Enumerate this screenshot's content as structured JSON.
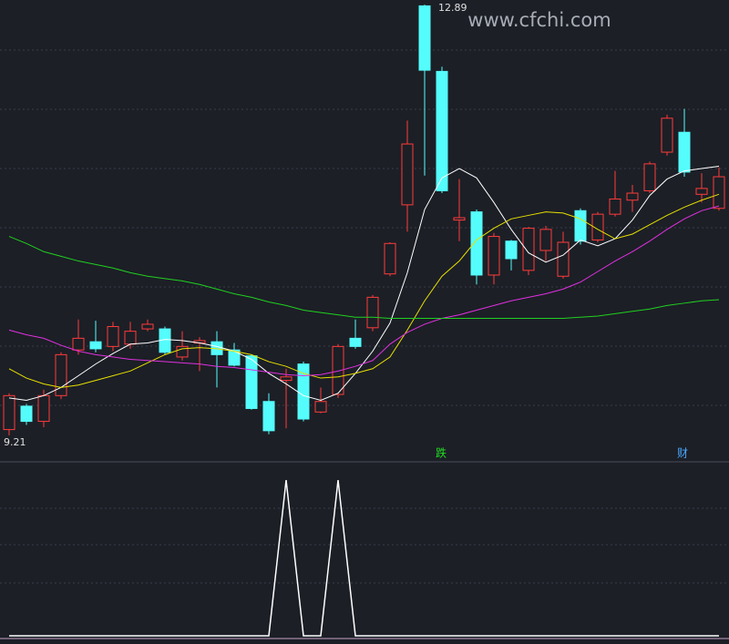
{
  "chart_data": [
    {
      "type": "candlestick",
      "watermark": "www.cfchi.com",
      "annotations": [
        "12.89",
        "9.21",
        "跌",
        "财"
      ],
      "up_color": "#ff3b3b",
      "down_color": "#54fcfc",
      "ylim": [
        9.0,
        12.93
      ],
      "open": [
        9.26,
        9.46,
        9.33,
        9.55,
        9.94,
        10.01,
        9.97,
        9.99,
        10.12,
        10.12,
        9.88,
        10.0,
        10.01,
        9.94,
        9.89,
        9.5,
        9.68,
        9.82,
        9.41,
        9.56,
        10.04,
        10.13,
        10.59,
        11.18,
        12.88,
        12.32,
        11.05,
        11.12,
        10.58,
        10.87,
        10.62,
        10.79,
        10.57,
        11.13,
        10.88,
        11.1,
        11.22,
        11.3,
        11.63,
        11.8,
        11.27,
        11.15
      ],
      "high": [
        9.57,
        9.48,
        9.6,
        9.92,
        10.2,
        10.19,
        10.18,
        10.18,
        10.2,
        10.14,
        10.1,
        10.05,
        10.1,
        10.0,
        9.9,
        9.57,
        9.78,
        9.84,
        9.62,
        9.99,
        10.2,
        10.41,
        10.86,
        11.9,
        12.89,
        12.36,
        11.4,
        11.14,
        10.94,
        10.88,
        10.99,
        11.0,
        10.95,
        11.15,
        11.12,
        11.47,
        11.35,
        11.55,
        11.95,
        12.0,
        11.45,
        11.5
      ],
      "low": [
        9.21,
        9.3,
        9.28,
        9.52,
        9.9,
        9.92,
        9.93,
        9.95,
        10.1,
        9.9,
        9.85,
        9.76,
        9.62,
        9.8,
        9.43,
        9.22,
        9.27,
        9.33,
        9.4,
        9.53,
        9.95,
        10.1,
        10.57,
        10.95,
        11.43,
        11.28,
        10.87,
        10.5,
        10.5,
        10.62,
        10.58,
        10.7,
        10.55,
        10.84,
        10.86,
        11.08,
        11.12,
        11.28,
        11.6,
        11.42,
        11.2,
        11.13
      ],
      "close": [
        9.55,
        9.33,
        9.55,
        9.9,
        10.04,
        9.95,
        10.14,
        10.1,
        10.16,
        9.92,
        9.97,
        10.02,
        9.9,
        9.81,
        9.44,
        9.25,
        9.71,
        9.35,
        9.5,
        9.97,
        9.97,
        10.39,
        10.85,
        11.7,
        12.33,
        11.3,
        11.07,
        10.58,
        10.91,
        10.72,
        10.98,
        10.97,
        10.86,
        10.87,
        11.1,
        11.23,
        11.28,
        11.53,
        11.92,
        11.46,
        11.32,
        11.42
      ],
      "lines": [
        {
          "color": "#ffffff",
          "values": [
            9.53,
            9.51,
            9.55,
            9.62,
            9.72,
            9.82,
            9.91,
            9.99,
            10.0,
            10.03,
            10.02,
            10.0,
            9.97,
            9.93,
            9.86,
            9.74,
            9.65,
            9.55,
            9.51,
            9.57,
            9.74,
            9.93,
            10.17,
            10.6,
            11.14,
            11.41,
            11.49,
            11.41,
            11.2,
            10.97,
            10.77,
            10.69,
            10.75,
            10.88,
            10.83,
            10.89,
            11.05,
            11.26,
            11.4,
            11.47,
            11.49,
            11.51
          ]
        },
        {
          "color": "#e8e000",
          "values": [
            9.78,
            9.7,
            9.65,
            9.62,
            9.64,
            9.68,
            9.72,
            9.76,
            9.83,
            9.9,
            9.95,
            9.96,
            9.95,
            9.93,
            9.9,
            9.84,
            9.8,
            9.74,
            9.7,
            9.71,
            9.74,
            9.78,
            9.88,
            10.11,
            10.36,
            10.57,
            10.7,
            10.88,
            10.98,
            11.06,
            11.09,
            11.12,
            11.11,
            11.06,
            10.97,
            10.89,
            10.93,
            11.01,
            11.09,
            11.16,
            11.22,
            11.27
          ]
        },
        {
          "color": "#e030e0",
          "values": [
            10.11,
            10.07,
            10.04,
            9.98,
            9.93,
            9.9,
            9.88,
            9.86,
            9.85,
            9.84,
            9.83,
            9.82,
            9.8,
            9.79,
            9.77,
            9.75,
            9.73,
            9.72,
            9.73,
            9.76,
            9.8,
            9.85,
            9.99,
            10.09,
            10.16,
            10.21,
            10.24,
            10.28,
            10.32,
            10.36,
            10.39,
            10.42,
            10.46,
            10.52,
            10.61,
            10.7,
            10.78,
            10.87,
            10.97,
            11.06,
            11.13,
            11.17
          ]
        },
        {
          "color": "#20d020",
          "values": [
            10.91,
            10.85,
            10.78,
            10.74,
            10.7,
            10.67,
            10.64,
            10.6,
            10.57,
            10.55,
            10.53,
            10.5,
            10.46,
            10.42,
            10.39,
            10.35,
            10.32,
            10.28,
            10.26,
            10.24,
            10.22,
            10.22,
            10.21,
            10.21,
            10.21,
            10.21,
            10.21,
            10.21,
            10.21,
            10.21,
            10.21,
            10.21,
            10.21,
            10.22,
            10.23,
            10.25,
            10.27,
            10.29,
            10.32,
            10.34,
            10.36,
            10.37
          ]
        }
      ]
    },
    {
      "type": "line",
      "color": "#ffffff",
      "ylim": [
        0,
        1.1
      ],
      "values": [
        0,
        0,
        0,
        0,
        0,
        0,
        0,
        0,
        0,
        0,
        0,
        0,
        0,
        0,
        0,
        0,
        1,
        0,
        0,
        1,
        0,
        0,
        0,
        0,
        0,
        0,
        0,
        0,
        0,
        0,
        0,
        0,
        0,
        0,
        0,
        0,
        0,
        0,
        0,
        0,
        0,
        0
      ]
    }
  ]
}
